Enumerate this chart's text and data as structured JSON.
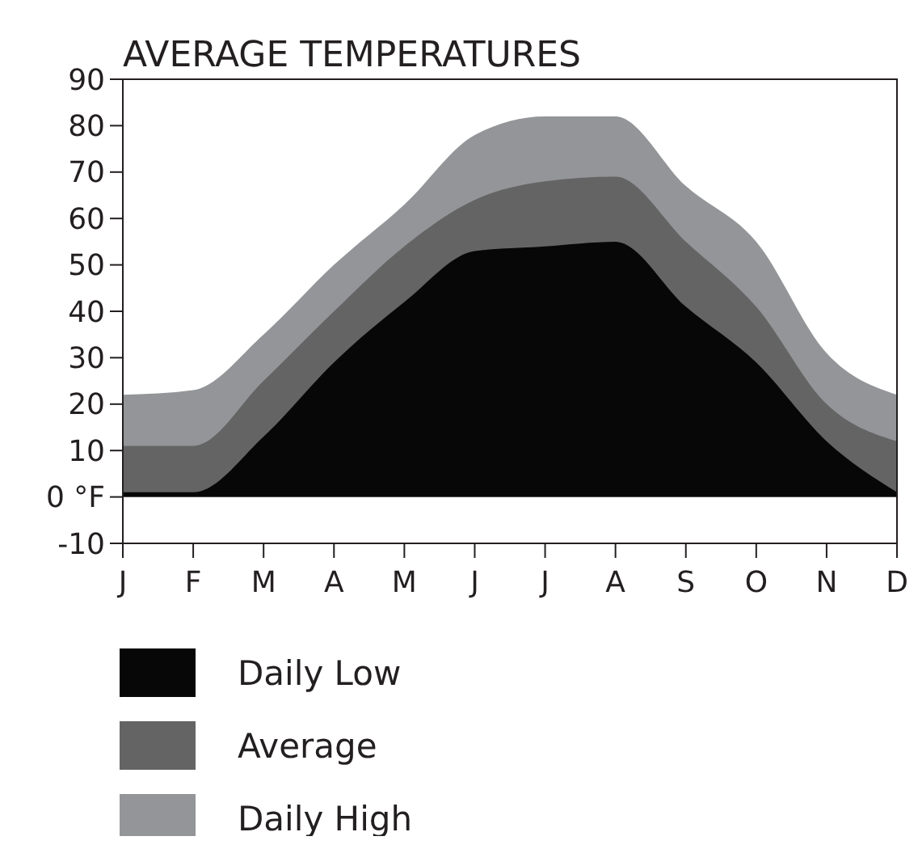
{
  "chart_data": {
    "type": "area",
    "title": "AVERAGE TEMPERATURES",
    "categories": [
      "J",
      "F",
      "M",
      "A",
      "M",
      "J",
      "J",
      "A",
      "S",
      "O",
      "N",
      "D"
    ],
    "series": [
      {
        "name": "Daily High",
        "color": "#939598",
        "values": [
          22,
          23,
          35,
          50,
          63,
          78,
          82,
          82,
          67,
          55,
          31,
          22
        ]
      },
      {
        "name": "Average",
        "color": "#646464",
        "values": [
          11,
          11,
          25,
          40,
          54,
          64,
          68,
          69,
          55,
          41,
          20,
          12
        ]
      },
      {
        "name": "Daily Low",
        "color": "#070707",
        "values": [
          1,
          1,
          13,
          29,
          42,
          53,
          54,
          55,
          41,
          29,
          12,
          1
        ]
      }
    ],
    "ylim": [
      -10,
      90
    ],
    "yticks": [
      {
        "value": -10,
        "label": "-10"
      },
      {
        "value": 0,
        "label": "0 °F"
      },
      10,
      20,
      30,
      40,
      50,
      60,
      70,
      80,
      90
    ],
    "grid": false,
    "legend": "bottom"
  }
}
